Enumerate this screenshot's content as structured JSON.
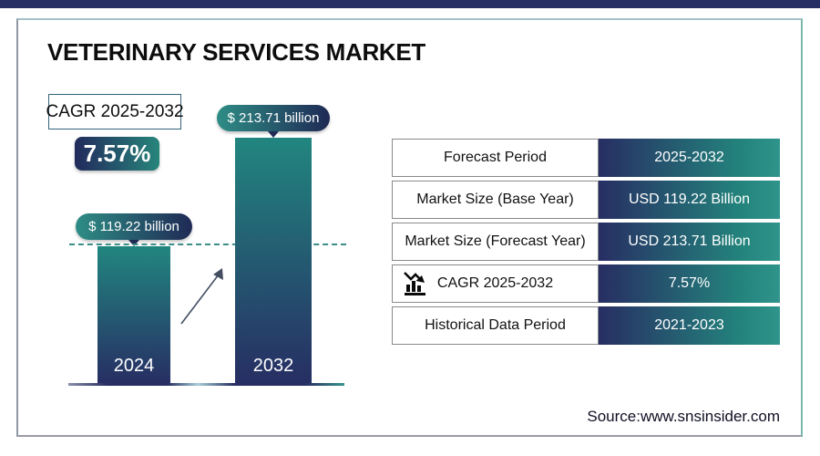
{
  "header": {
    "title": "VETERINARY SERVICES MARKET"
  },
  "cagr": {
    "period_label": "CAGR 2025-2032",
    "value": "7.57%"
  },
  "chart_data": {
    "type": "bar",
    "title": "VETERINARY SERVICES MARKET",
    "categories": [
      "2024",
      "2032"
    ],
    "values": [
      119.22,
      213.71
    ],
    "unit": "USD Billion",
    "data_labels": [
      "$ 119.22 billion",
      "$ 213.71 billion"
    ],
    "xlabel": "",
    "ylabel": "",
    "ylim": [
      0,
      213.71
    ],
    "grid": false,
    "legend_position": "none"
  },
  "table": {
    "rows": [
      {
        "label": "Forecast Period",
        "value": "2025-2032"
      },
      {
        "label": "Market Size (Base Year)",
        "value": "USD 119.22 Billion"
      },
      {
        "label": "Market Size (Forecast Year)",
        "value": "USD 213.71 Billion"
      },
      {
        "label": "CAGR 2025-2032",
        "value": "7.57%",
        "icon": "bar-chart-trend-icon"
      },
      {
        "label": "Historical Data Period",
        "value": "2021-2023"
      }
    ]
  },
  "footer": {
    "source": "Source:www.snsinsider.com"
  },
  "colors": {
    "navy": "#272e63",
    "teal": "#21867f",
    "teal_bright": "#2f948b",
    "pill_navy": "#1f2a55",
    "frame_right_accent": "#79b7ad"
  }
}
